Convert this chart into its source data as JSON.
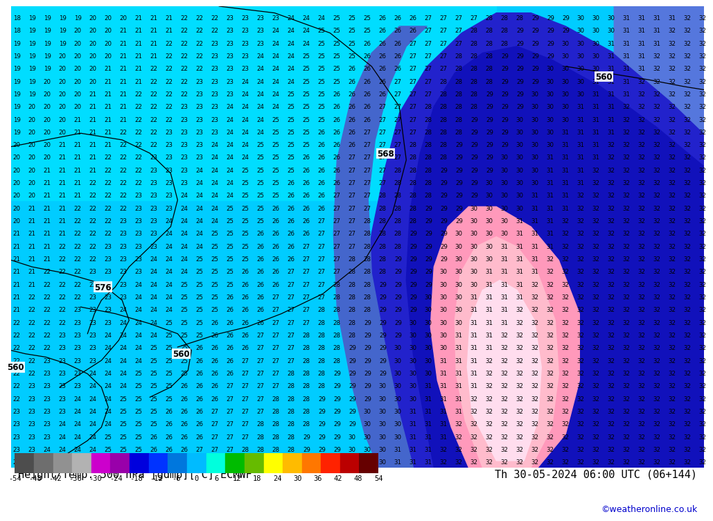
{
  "title_left": "Height/Temp. 500 hPa [gdmp][°C] ECMWF",
  "title_right": "Th 30-05-2024 06:00 UTC (06+144)",
  "credit": "©weatheronline.co.uk",
  "colorbar_values": [
    -54,
    -48,
    -42,
    -36,
    -30,
    -24,
    -18,
    -12,
    -6,
    0,
    6,
    12,
    18,
    24,
    30,
    36,
    42,
    48,
    54
  ],
  "seg_colors": [
    "#4d4d4d",
    "#6e6e6e",
    "#919191",
    "#b2b2b2",
    "#cc00cc",
    "#9900aa",
    "#0000dd",
    "#0033ff",
    "#0077dd",
    "#00bbff",
    "#00ffdd",
    "#00bb00",
    "#66bb00",
    "#ffff00",
    "#ffbb00",
    "#ff7700",
    "#ff2200",
    "#bb0000",
    "#660000"
  ],
  "map_bg": "#00ccff",
  "bottom_bg": "#ffffff",
  "title_fontsize": 11,
  "credit_fontsize": 9,
  "num_fontsize": 6.2,
  "label_fontsize": 7.5
}
